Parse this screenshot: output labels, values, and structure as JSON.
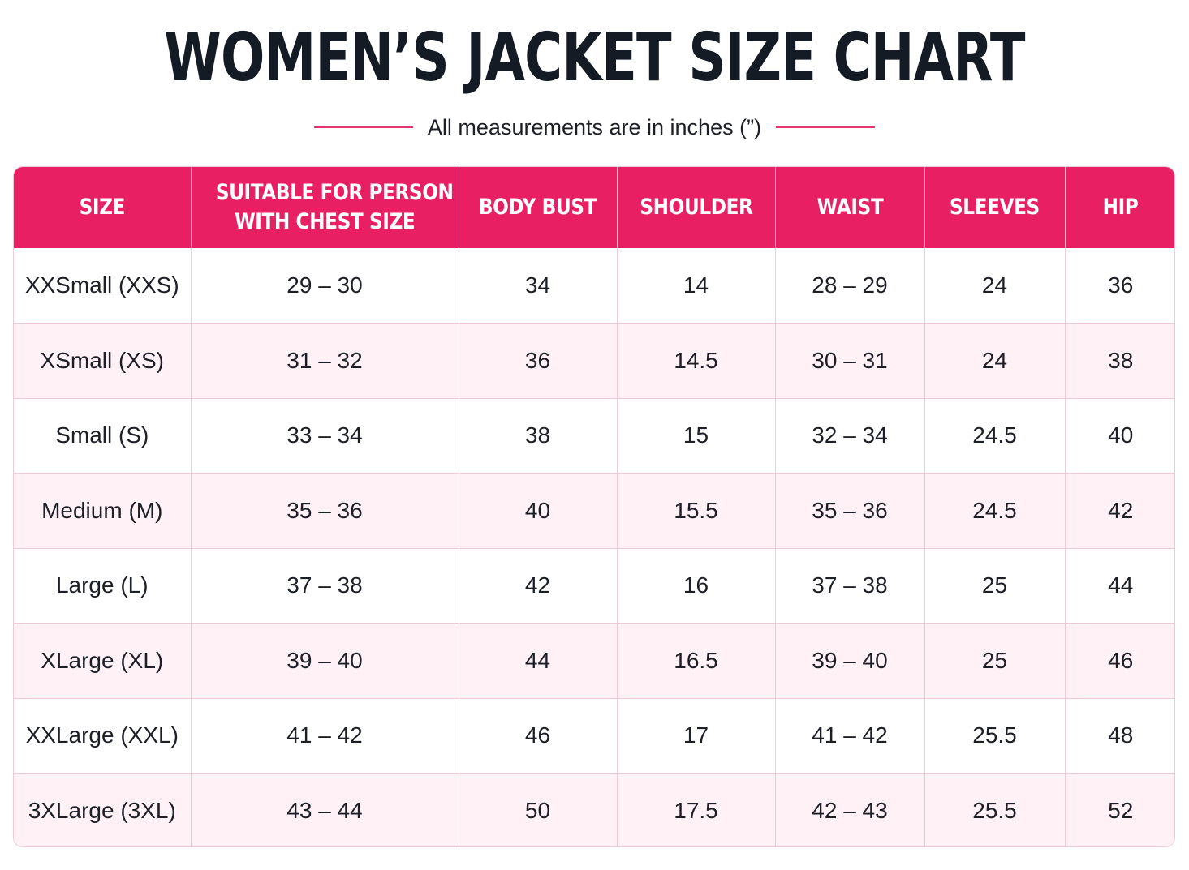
{
  "title": "WOMEN’S JACKET SIZE CHART",
  "subtitle": "All measurements are in inches (”)",
  "colors": {
    "accent": "#e81f63",
    "title": "#141b24",
    "row_alt": "#fff1f5",
    "border": "#f0c9d6"
  },
  "table": {
    "headers": [
      "SIZE",
      "SUITABLE FOR PERSON",
      "WITH CHEST SIZE",
      "BODY BUST",
      "SHOULDER",
      "WAIST",
      "SLEEVES",
      "HIP"
    ],
    "rows": [
      [
        "XXSmall (XXS)",
        "29 – 30",
        "34",
        "14",
        "28 – 29",
        "24",
        "36"
      ],
      [
        "XSmall (XS)",
        "31 – 32",
        "36",
        "14.5",
        "30 – 31",
        "24",
        "38"
      ],
      [
        "Small (S)",
        "33 – 34",
        "38",
        "15",
        "32 – 34",
        "24.5",
        "40"
      ],
      [
        "Medium (M)",
        "35 – 36",
        "40",
        "15.5",
        "35 – 36",
        "24.5",
        "42"
      ],
      [
        "Large (L)",
        "37 – 38",
        "42",
        "16",
        "37 – 38",
        "25",
        "44"
      ],
      [
        "XLarge (XL)",
        "39 – 40",
        "44",
        "16.5",
        "39 – 40",
        "25",
        "46"
      ],
      [
        "XXLarge (XXL)",
        "41 – 42",
        "46",
        "17",
        "41 – 42",
        "25.5",
        "48"
      ],
      [
        "3XLarge (3XL)",
        "43 – 44",
        "50",
        "17.5",
        "42 – 43",
        "25.5",
        "52"
      ]
    ]
  }
}
